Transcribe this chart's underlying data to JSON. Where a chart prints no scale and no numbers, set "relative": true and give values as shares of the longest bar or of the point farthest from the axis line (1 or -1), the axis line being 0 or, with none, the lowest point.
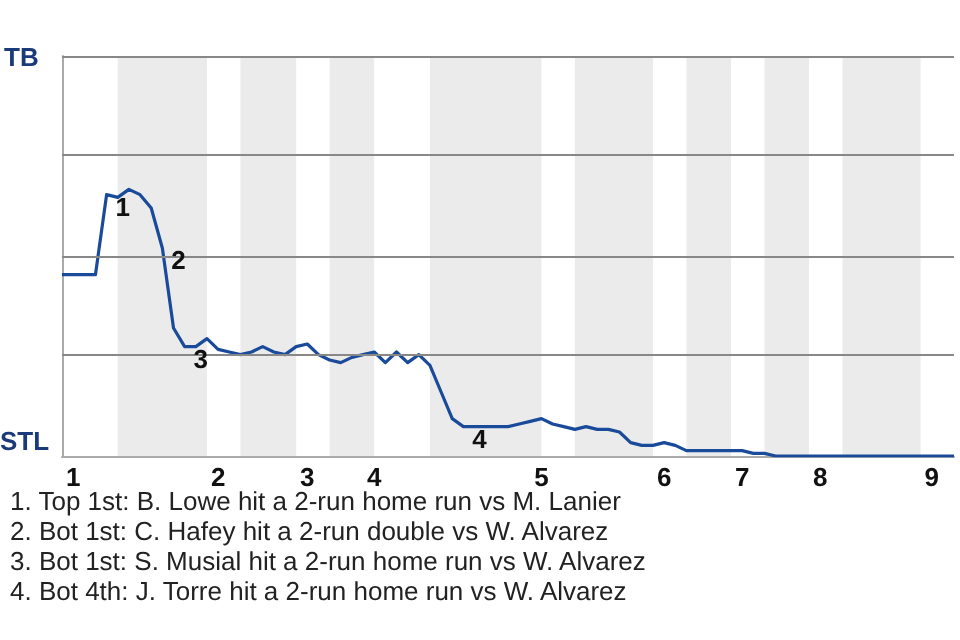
{
  "chart_data": {
    "type": "line",
    "relative": true,
    "categories": [
      null,
      "1",
      null,
      null,
      null,
      null,
      null,
      null,
      null,
      null,
      null,
      null,
      null,
      null,
      "2",
      null,
      null,
      null,
      null,
      null,
      null,
      null,
      "3",
      null,
      null,
      null,
      null,
      null,
      "4",
      null,
      null,
      null,
      null,
      null,
      null,
      null,
      null,
      null,
      null,
      null,
      null,
      null,
      null,
      "5",
      null,
      null,
      null,
      null,
      null,
      null,
      null,
      null,
      null,
      null,
      "6",
      null,
      null,
      null,
      null,
      null,
      null,
      "7",
      null,
      null,
      null,
      null,
      null,
      null,
      "8",
      null,
      null,
      null,
      null,
      null,
      null,
      null,
      null,
      null,
      "9",
      null,
      null
    ],
    "series": [
      {
        "color": "#1a4a9a",
        "values": [
          0.68,
          0.68,
          0.68,
          0.68,
          0.98,
          0.97,
          1.0,
          0.98,
          0.93,
          0.78,
          0.48,
          0.41,
          0.41,
          0.44,
          0.4,
          0.39,
          0.38,
          0.39,
          0.41,
          0.39,
          0.38,
          0.41,
          0.42,
          0.38,
          0.36,
          0.35,
          0.37,
          0.38,
          0.39,
          0.35,
          0.39,
          0.35,
          0.38,
          0.34,
          0.24,
          0.14,
          0.11,
          0.11,
          0.11,
          0.11,
          0.11,
          0.12,
          0.13,
          0.14,
          0.12,
          0.11,
          0.1,
          0.11,
          0.1,
          0.1,
          0.09,
          0.05,
          0.04,
          0.04,
          0.05,
          0.04,
          0.02,
          0.02,
          0.02,
          0.02,
          0.02,
          0.02,
          0.01,
          0.01,
          0,
          0,
          0,
          0,
          0,
          0,
          0,
          0,
          0,
          0,
          0,
          0,
          0,
          0,
          0,
          0,
          0
        ]
      }
    ],
    "marker": "none",
    "line_style": "solid",
    "ref_lines": [
      {
        "axis": "y",
        "value": 0.375,
        "color": "#888888"
      },
      {
        "axis": "y",
        "value": 0.75,
        "color": "#888888"
      },
      {
        "axis": "y",
        "value": 1.125,
        "color": "#888888"
      },
      {
        "axis": "y",
        "value": 1.5,
        "color": "#888888"
      }
    ],
    "annotations": [
      "TB",
      "STL",
      "1. Top 1st: B. Lowe hit a 2-run home run vs M. Lanier",
      "2. Bot 1st: C. Hafey hit a 2-run double vs W. Alvarez",
      "3. Bot 1st: S. Musial hit a 2-run home run vs W. Alvarez",
      "4. Bot 4th: J. Torre hit a 2-run home run vs W. Alvarez",
      {
        "text": "1",
        "y": 0.98
      },
      {
        "text": "2",
        "y": 0.78
      },
      {
        "text": "3",
        "y": 0.41
      },
      {
        "text": "4",
        "y": 0.11
      }
    ]
  }
}
